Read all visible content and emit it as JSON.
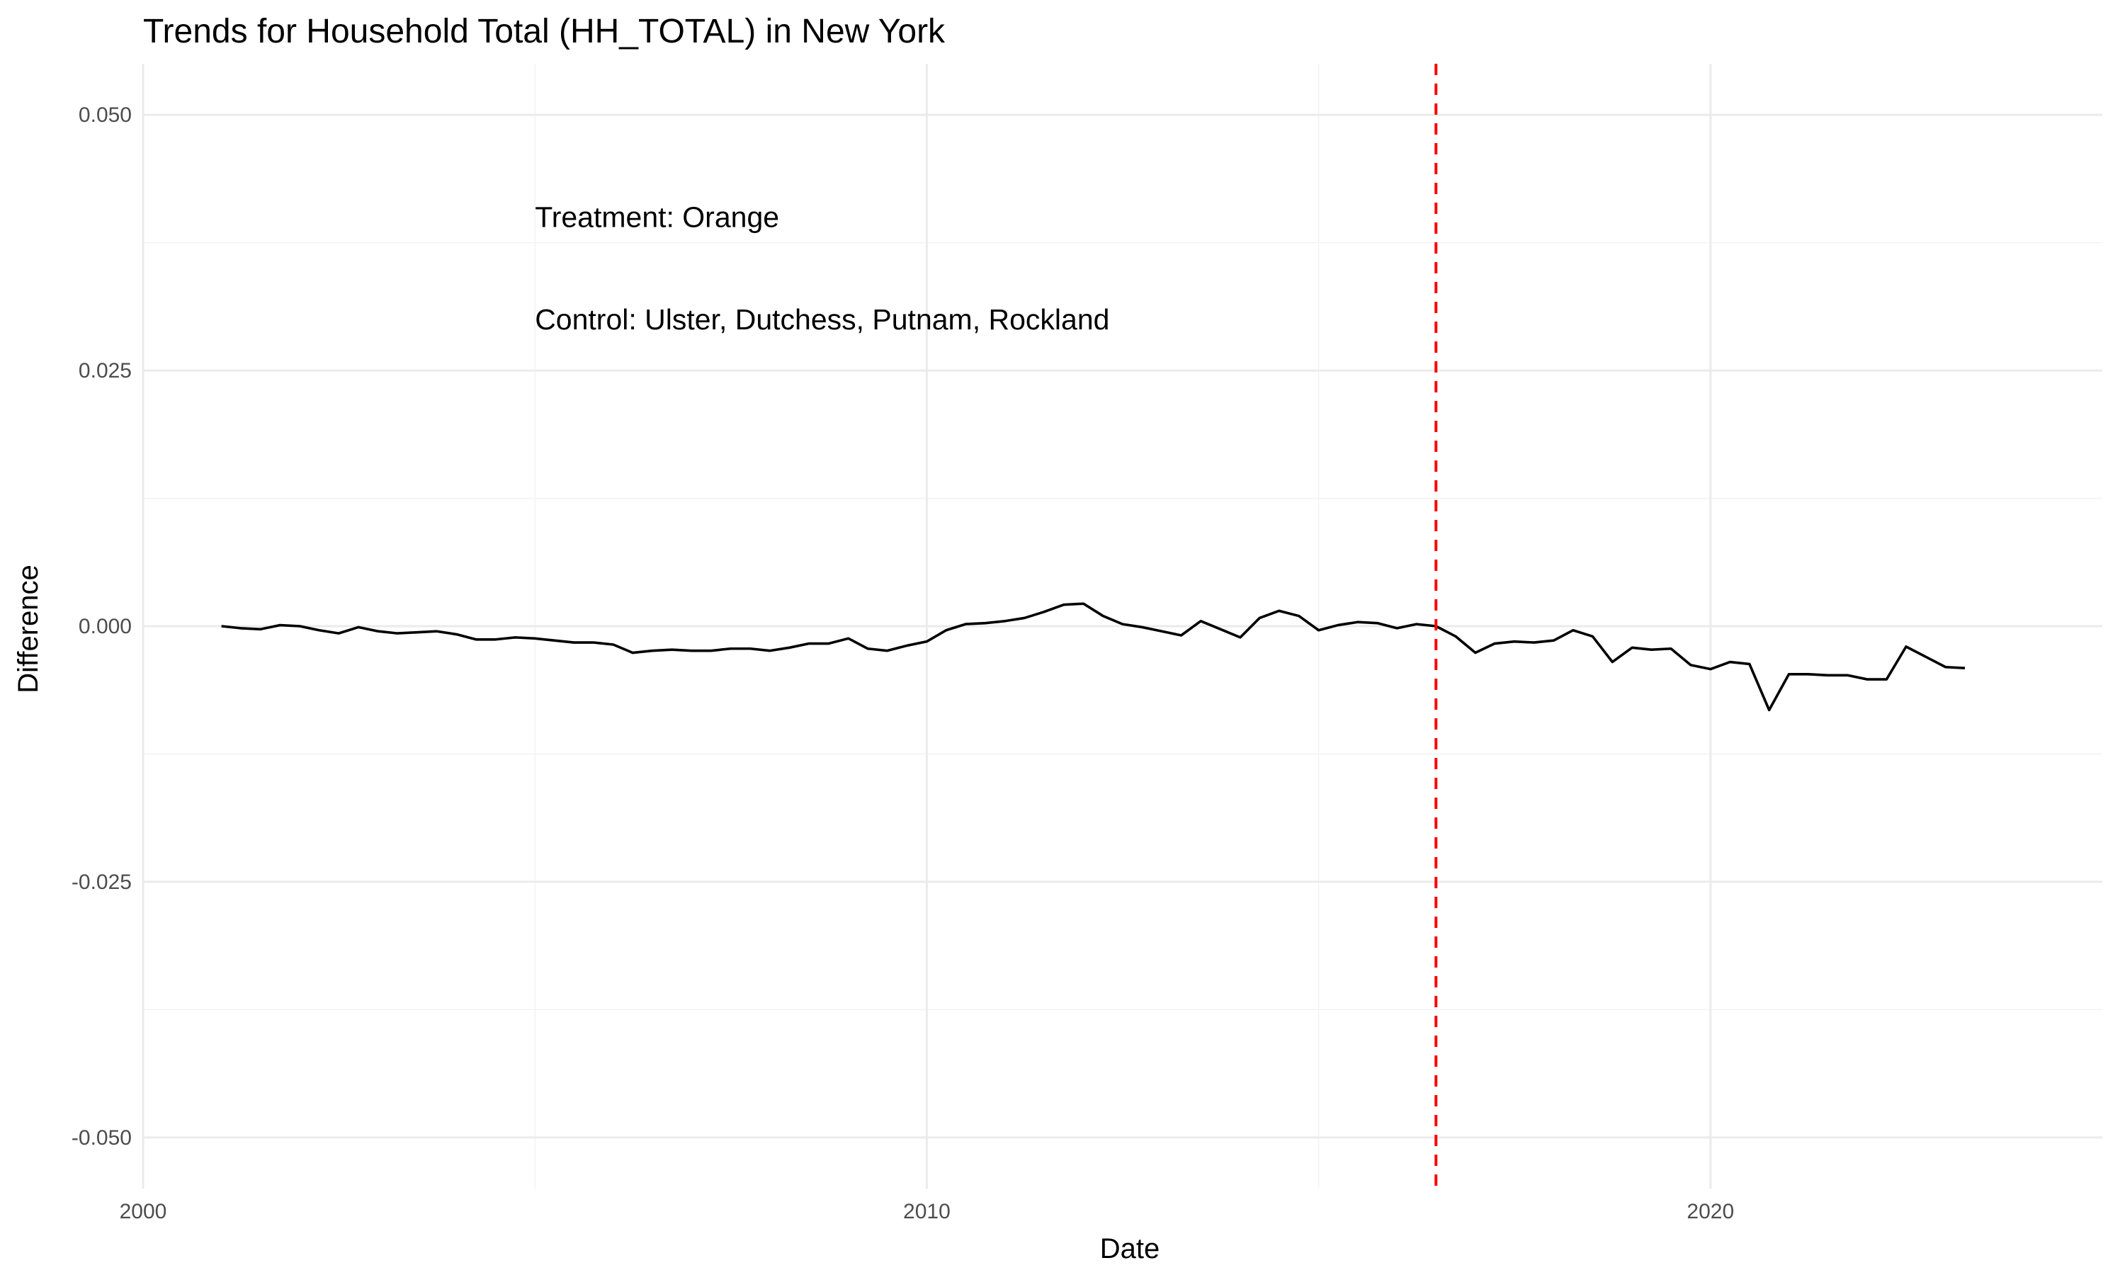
{
  "chart_data": {
    "type": "line",
    "title": "Trends for Household Total (HH_TOTAL) in New York",
    "xlabel": "Date",
    "ylabel": "Difference",
    "xlim": [
      "2000-01-01",
      "2025-01-01"
    ],
    "ylim": [
      -0.055,
      0.055
    ],
    "x_ticks": [
      {
        "label": "2000",
        "value": "2000-01-01"
      },
      {
        "label": "2010",
        "value": "2010-01-01"
      },
      {
        "label": "2020",
        "value": "2020-01-01"
      }
    ],
    "y_ticks": [
      {
        "label": "0.050",
        "value": 0.05
      },
      {
        "label": "0.025",
        "value": 0.025
      },
      {
        "label": "0.000",
        "value": 0.0
      },
      {
        "label": "-0.025",
        "value": -0.025
      },
      {
        "label": "-0.050",
        "value": -0.05
      }
    ],
    "grid": true,
    "legend": "none",
    "annotations": [
      {
        "text": "Treatment: Orange",
        "x": "2005-01-01",
        "y": 0.04
      },
      {
        "text": "Control: Ulster, Dutchess, Putnam, Rockland",
        "x": "2005-01-01",
        "y": 0.03
      }
    ],
    "reference_line": {
      "orientation": "vertical",
      "x": "2016-07-01",
      "color": "#ff0000",
      "style": "dashed"
    },
    "series": [
      {
        "color": "#000000",
        "points": [
          [
            "2001-01-01",
            0.0
          ],
          [
            "2001-04-01",
            -0.0002
          ],
          [
            "2001-07-01",
            -0.0003
          ],
          [
            "2001-10-01",
            0.0001
          ],
          [
            "2002-01-01",
            0.0
          ],
          [
            "2002-04-01",
            -0.0004
          ],
          [
            "2002-07-01",
            -0.0007
          ],
          [
            "2002-10-01",
            -0.0001
          ],
          [
            "2003-01-01",
            -0.0005
          ],
          [
            "2003-04-01",
            -0.0007
          ],
          [
            "2003-07-01",
            -0.0006
          ],
          [
            "2003-10-01",
            -0.0005
          ],
          [
            "2004-01-01",
            -0.0008
          ],
          [
            "2004-04-01",
            -0.0013
          ],
          [
            "2004-07-01",
            -0.0013
          ],
          [
            "2004-10-01",
            -0.0011
          ],
          [
            "2005-01-01",
            -0.0012
          ],
          [
            "2005-04-01",
            -0.0014
          ],
          [
            "2005-07-01",
            -0.0016
          ],
          [
            "2005-10-01",
            -0.0016
          ],
          [
            "2006-01-01",
            -0.0018
          ],
          [
            "2006-04-01",
            -0.0026
          ],
          [
            "2006-07-01",
            -0.0024
          ],
          [
            "2006-10-01",
            -0.0023
          ],
          [
            "2007-01-01",
            -0.0024
          ],
          [
            "2007-04-01",
            -0.0024
          ],
          [
            "2007-07-01",
            -0.0022
          ],
          [
            "2007-10-01",
            -0.0022
          ],
          [
            "2008-01-01",
            -0.0024
          ],
          [
            "2008-04-01",
            -0.0021
          ],
          [
            "2008-07-01",
            -0.0017
          ],
          [
            "2008-10-01",
            -0.0017
          ],
          [
            "2009-01-01",
            -0.0012
          ],
          [
            "2009-04-01",
            -0.0022
          ],
          [
            "2009-07-01",
            -0.0024
          ],
          [
            "2009-10-01",
            -0.0019
          ],
          [
            "2010-01-01",
            -0.0015
          ],
          [
            "2010-04-01",
            -0.0004
          ],
          [
            "2010-07-01",
            0.0002
          ],
          [
            "2010-10-01",
            0.0003
          ],
          [
            "2011-01-01",
            0.0005
          ],
          [
            "2011-04-01",
            0.0008
          ],
          [
            "2011-07-01",
            0.0014
          ],
          [
            "2011-10-01",
            0.0021
          ],
          [
            "2012-01-01",
            0.0022
          ],
          [
            "2012-04-01",
            0.001
          ],
          [
            "2012-07-01",
            0.0002
          ],
          [
            "2012-10-01",
            -0.0001
          ],
          [
            "2013-01-01",
            -0.0005
          ],
          [
            "2013-04-01",
            -0.0009
          ],
          [
            "2013-07-01",
            0.0005
          ],
          [
            "2013-10-01",
            -0.0003
          ],
          [
            "2014-01-01",
            -0.0011
          ],
          [
            "2014-04-01",
            0.0008
          ],
          [
            "2014-07-01",
            0.0015
          ],
          [
            "2014-10-01",
            0.001
          ],
          [
            "2015-01-01",
            -0.0004
          ],
          [
            "2015-04-01",
            0.0001
          ],
          [
            "2015-07-01",
            0.0004
          ],
          [
            "2015-10-01",
            0.0003
          ],
          [
            "2016-01-01",
            -0.0002
          ],
          [
            "2016-04-01",
            0.0002
          ],
          [
            "2016-07-01",
            0.0
          ],
          [
            "2016-10-01",
            -0.001
          ],
          [
            "2017-01-01",
            -0.0026
          ],
          [
            "2017-04-01",
            -0.0017
          ],
          [
            "2017-07-01",
            -0.0015
          ],
          [
            "2017-10-01",
            -0.0016
          ],
          [
            "2018-01-01",
            -0.0014
          ],
          [
            "2018-04-01",
            -0.0004
          ],
          [
            "2018-07-01",
            -0.001
          ],
          [
            "2018-10-01",
            -0.0035
          ],
          [
            "2019-01-01",
            -0.0021
          ],
          [
            "2019-04-01",
            -0.0023
          ],
          [
            "2019-07-01",
            -0.0022
          ],
          [
            "2019-10-01",
            -0.0038
          ],
          [
            "2020-01-01",
            -0.0042
          ],
          [
            "2020-04-01",
            -0.0035
          ],
          [
            "2020-07-01",
            -0.0037
          ],
          [
            "2020-10-01",
            -0.0082
          ],
          [
            "2021-01-01",
            -0.0047
          ],
          [
            "2021-04-01",
            -0.0047
          ],
          [
            "2021-07-01",
            -0.0048
          ],
          [
            "2021-10-01",
            -0.0048
          ],
          [
            "2022-01-01",
            -0.0052
          ],
          [
            "2022-04-01",
            -0.0052
          ],
          [
            "2022-07-01",
            -0.002
          ],
          [
            "2022-10-01",
            -0.003
          ],
          [
            "2023-01-01",
            -0.004
          ],
          [
            "2023-04-01",
            -0.0041
          ]
        ]
      }
    ]
  }
}
